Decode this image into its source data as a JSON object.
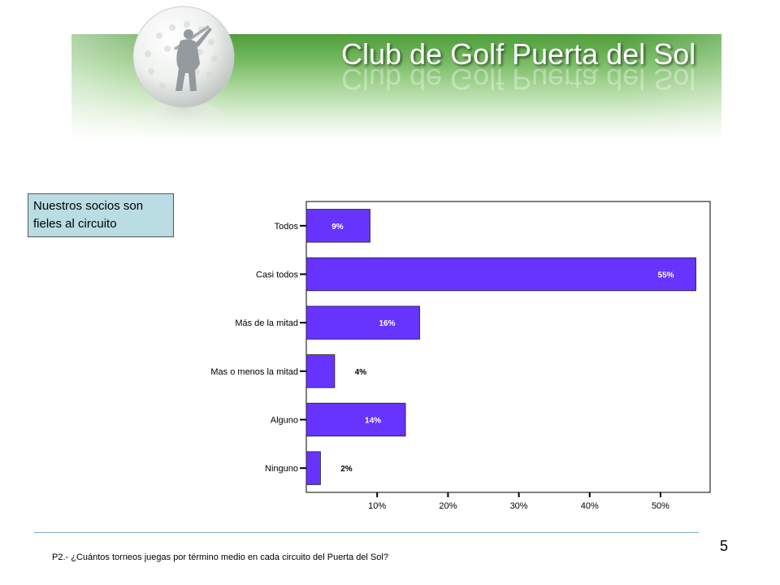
{
  "header": {
    "title": "Club de Golf Puerta del Sol",
    "logo": "golf-ball-with-golfer-silhouette",
    "colors": {
      "banner": "#6fb65a",
      "title": "#ffffff"
    }
  },
  "callout": {
    "text": "Nuestros socios son fieles al circuito"
  },
  "chart_data": {
    "type": "bar",
    "orientation": "horizontal",
    "categories": [
      "Todos",
      "Casi todos",
      "Más de la mitad",
      "Mas o menos la mitad",
      "Alguno",
      "Ninguno"
    ],
    "values": [
      9,
      55,
      16,
      4,
      14,
      2
    ],
    "value_labels": [
      "9%",
      "55%",
      "16%",
      "4%",
      "14%",
      "2%"
    ],
    "x_ticks": [
      10,
      20,
      30,
      40,
      50
    ],
    "x_tick_labels": [
      "10%",
      "20%",
      "30%",
      "40%",
      "50%"
    ],
    "xlim": [
      0,
      57
    ],
    "bar_color": "#6633ff",
    "grid": false,
    "legend": "none"
  },
  "footer": {
    "question": "P2.- ¿Cuántos torneos juegas por término medio en cada circuito del Puerta del Sol?",
    "page_number": "5"
  }
}
